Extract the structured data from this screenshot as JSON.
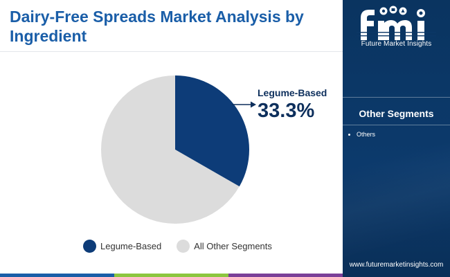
{
  "header": {
    "title": "Dairy-Free Spreads Market Analysis by Ingredient"
  },
  "chart_data": {
    "type": "pie",
    "title": "Dairy-Free Spreads Market Analysis by Ingredient",
    "slices": [
      {
        "label": "Legume-Based",
        "value": 33.3,
        "color": "#0d3c78"
      },
      {
        "label": "All Other Segments",
        "value": 66.7,
        "color": "#dcdcdc"
      }
    ],
    "callout": {
      "label": "Legume-Based",
      "value_text": "33.3%"
    },
    "legend_position": "bottom"
  },
  "legend": [
    {
      "label": "Legume-Based",
      "color": "#0d3c78"
    },
    {
      "label": "All Other Segments",
      "color": "#dcdcdc"
    }
  ],
  "sidebar": {
    "brand": "Future Market Insights",
    "section_title": "Other Segments",
    "items": [
      "Others"
    ],
    "website": "www.futuremarketinsights.com"
  },
  "colors": {
    "title": "#1a5ea8",
    "accent_dark": "#0d3c78",
    "sidebar_bg": "#0c3766",
    "bottom_bar": [
      "#1a5ea8",
      "#8cc63f",
      "#7b3f98",
      "#0c3766"
    ]
  }
}
